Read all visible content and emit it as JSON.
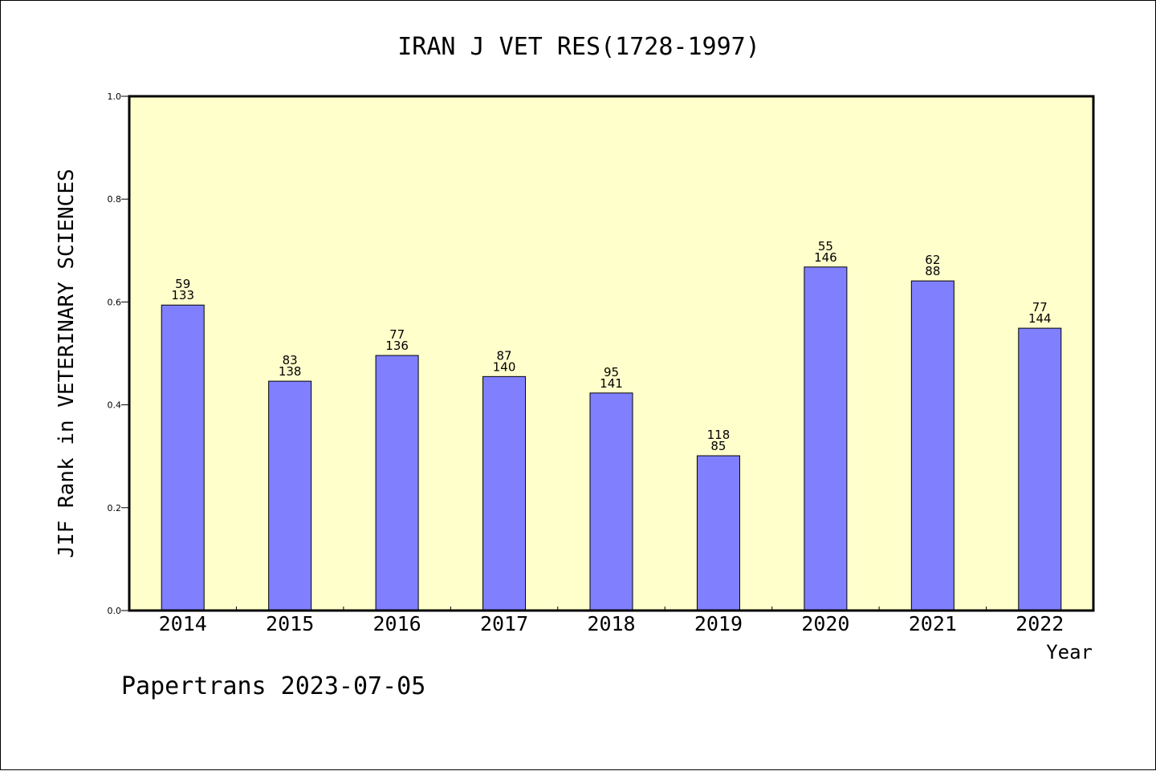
{
  "chart_data": {
    "type": "bar",
    "title": "IRAN J VET RES(1728-1997)",
    "xlabel": "Year",
    "ylabel": "JIF Rank in VETERINARY SCIENCES",
    "categories": [
      "2014",
      "2015",
      "2016",
      "2017",
      "2018",
      "2019",
      "2020",
      "2021",
      "2022"
    ],
    "values": [
      0.594,
      0.446,
      0.496,
      0.455,
      0.423,
      0.301,
      0.668,
      0.641,
      0.549
    ],
    "bar_labels": [
      [
        "59",
        "133"
      ],
      [
        "83",
        "138"
      ],
      [
        "77",
        "136"
      ],
      [
        "87",
        "140"
      ],
      [
        "95",
        "141"
      ],
      [
        "118",
        "85"
      ],
      [
        "55",
        "146"
      ],
      [
        "62",
        "88"
      ],
      [
        "77",
        "144"
      ]
    ],
    "ylim": [
      0,
      1.0
    ],
    "yticks": [
      "0.0",
      "0.2",
      "0.4",
      "0.6",
      "0.8",
      "1.0"
    ],
    "grid": false,
    "legend": "none",
    "colors": {
      "bar_fill": "#8080ff",
      "bar_stroke": "#000000",
      "plot_background": "#ffffcc"
    }
  },
  "footer": "Papertrans 2023-07-05"
}
